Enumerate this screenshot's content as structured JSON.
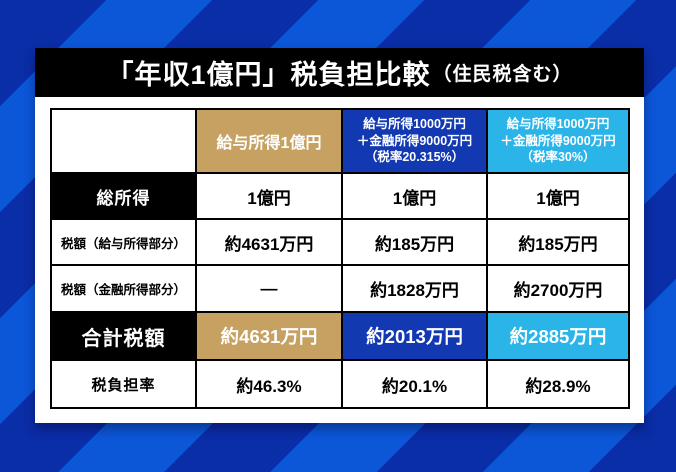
{
  "title": {
    "main": "「年収1億円」税負担比較",
    "note": "（住民税含む）"
  },
  "colors": {
    "stripe_dark_blue": "#0a2da8",
    "stripe_bright_blue": "#0c56d8",
    "salary_column_tan": "#c7a161",
    "rate20_column_blue": "#1238b2",
    "rate30_column_cyan": "#2ab4e8",
    "header_black": "#000000",
    "cell_white": "#ffffff"
  },
  "table": {
    "column_headers": [
      {
        "lines": [
          "給与所得1億円"
        ]
      },
      {
        "lines": [
          "給与所得1000万円",
          "＋金融所得9000万円",
          "（税率20.315%）"
        ]
      },
      {
        "lines": [
          "給与所得1000万円",
          "＋金融所得9000万円",
          "（税率30%）"
        ]
      }
    ],
    "rows": [
      {
        "label": "総所得",
        "cells": [
          "1億円",
          "1億円",
          "1億円"
        ]
      },
      {
        "label": "税額（給与所得部分）",
        "cells": [
          "約4631万円",
          "約185万円",
          "約185万円"
        ]
      },
      {
        "label": "税額（金融所得部分）",
        "cells": [
          "―",
          "約1828万円",
          "約2700万円"
        ]
      },
      {
        "label": "合計税額",
        "cells": [
          "約4631万円",
          "約2013万円",
          "約2885万円"
        ]
      },
      {
        "label": "税負担率",
        "cells": [
          "約46.3%",
          "約20.1%",
          "約28.9%"
        ]
      }
    ]
  },
  "chart_data": {
    "type": "table",
    "title": "「年収1億円」税負担比較（住民税含む）",
    "columns": [
      "",
      "給与所得1億円",
      "給与所得1000万円＋金融所得9000万円（税率20.315%）",
      "給与所得1000万円＋金融所得9000万円（税率30%）"
    ],
    "rows": [
      [
        "総所得",
        "1億円",
        "1億円",
        "1億円"
      ],
      [
        "税額（給与所得部分）",
        "約4631万円",
        "約185万円",
        "約185万円"
      ],
      [
        "税額（金融所得部分）",
        "―",
        "約1828万円",
        "約2700万円"
      ],
      [
        "合計税額",
        "約4631万円",
        "約2013万円",
        "約2885万円"
      ],
      [
        "税負担率",
        "約46.3%",
        "約20.1%",
        "約28.9%"
      ]
    ]
  }
}
